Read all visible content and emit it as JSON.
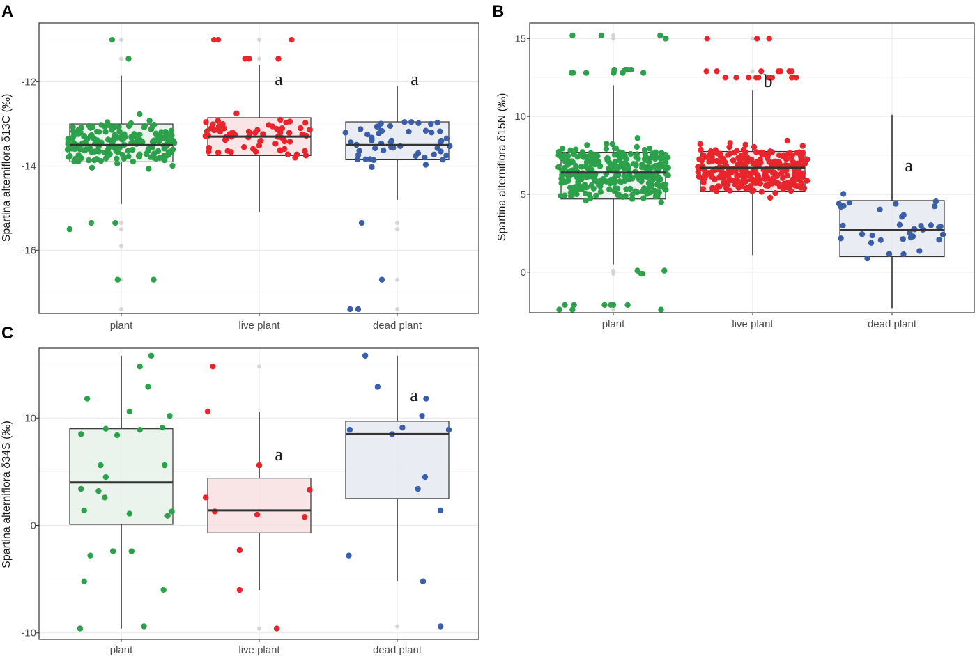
{
  "colors": {
    "plant": "#2ca04a",
    "live_plant": "#e8252c",
    "dead_plant": "#3a5fa8",
    "plant_fill": "#e3efe5",
    "live_fill": "#f7dcdd",
    "dead_fill": "#e2e7ef"
  },
  "chart_data": [
    {
      "panel": "A",
      "type": "box",
      "ylabel": "Spartina alterniflora δ13C (‰)",
      "categories": [
        "plant",
        "live plant",
        "dead plant"
      ],
      "yticks": [
        -12,
        -14,
        -16
      ],
      "ytick_labels": [
        "-12",
        "-14",
        "-16"
      ],
      "ylim": [
        -17.5,
        -10.6
      ],
      "series": [
        {
          "name": "plant",
          "q1": -13.9,
          "median": -13.5,
          "q3": -13.0,
          "whisker_low": -14.9,
          "whisker_high": -11.85,
          "outliers": [
            -11.0,
            -11.45,
            -15.35,
            -15.5,
            -15.9,
            -16.7,
            -17.4
          ],
          "sig": ""
        },
        {
          "name": "live plant",
          "q1": -13.75,
          "median": -13.3,
          "q3": -12.85,
          "whisker_low": -15.1,
          "whisker_high": -11.6,
          "outliers": [
            -11.0,
            -11.45
          ],
          "sig": "a"
        },
        {
          "name": "dead plant",
          "q1": -13.85,
          "median": -13.5,
          "q3": -12.95,
          "whisker_low": -14.8,
          "whisker_high": -12.1,
          "outliers": [
            -15.35,
            -15.5,
            -16.7,
            -17.4
          ],
          "sig": "a"
        }
      ],
      "jitter_counts": [
        190,
        75,
        55
      ]
    },
    {
      "panel": "B",
      "type": "box",
      "ylabel": "Spartina alterniflora δ15N (‰)",
      "categories": [
        "plant",
        "live plant",
        "dead plant"
      ],
      "yticks": [
        15,
        10,
        5,
        0
      ],
      "ytick_labels": [
        "15",
        "10",
        "5",
        "0"
      ],
      "ylim": [
        -2.6,
        16.0
      ],
      "series": [
        {
          "name": "plant",
          "q1": 4.7,
          "median": 6.4,
          "q3": 7.7,
          "whisker_low": 0.5,
          "whisker_high": 12.0,
          "outliers": [
            12.8,
            13.0,
            15.0,
            15.2,
            0.1,
            -0.1,
            -2.1,
            -2.4
          ],
          "sig": ""
        },
        {
          "name": "live plant",
          "q1": 5.2,
          "median": 6.7,
          "q3": 7.75,
          "whisker_low": 1.1,
          "whisker_high": 11.7,
          "outliers": [
            12.5,
            12.9,
            15.0
          ],
          "sig": "b"
        },
        {
          "name": "dead plant",
          "q1": 1.0,
          "median": 2.7,
          "q3": 4.6,
          "whisker_low": -2.3,
          "whisker_high": 10.1,
          "outliers": [],
          "sig": "a"
        }
      ],
      "jitter_counts": [
        330,
        300,
        35
      ]
    },
    {
      "panel": "C",
      "type": "box",
      "ylabel": "Spartina alterniflora δ34S (‰)",
      "categories": [
        "plant",
        "live plant",
        "dead plant"
      ],
      "yticks": [
        10,
        0,
        -10
      ],
      "ytick_labels": [
        "10",
        "0",
        "-10"
      ],
      "ylim": [
        -10.6,
        16.5
      ],
      "series": [
        {
          "name": "plant",
          "q1": 0.1,
          "median": 4.0,
          "q3": 9.0,
          "whisker_low": -9.6,
          "whisker_high": 15.8,
          "outliers": [],
          "sig": ""
        },
        {
          "name": "live plant",
          "q1": -0.7,
          "median": 1.4,
          "q3": 4.4,
          "whisker_low": -6.0,
          "whisker_high": 10.6,
          "outliers": [
            14.8,
            -9.6
          ],
          "sig": "a"
        },
        {
          "name": "dead plant",
          "q1": 2.5,
          "median": 8.5,
          "q3": 9.7,
          "whisker_low": -5.2,
          "whisker_high": 15.8,
          "outliers": [
            -9.4
          ],
          "sig": "a"
        }
      ],
      "points": [
        [
          [
            -9.6,
            -0.4
          ],
          [
            -9.4,
            0.22
          ],
          [
            -6.0,
            0.41
          ],
          [
            -5.2,
            -0.36
          ],
          [
            -2.8,
            -0.3
          ],
          [
            -2.4,
            -0.08
          ],
          [
            -2.4,
            0.1
          ],
          [
            0.9,
            0.45
          ],
          [
            1.1,
            0.08
          ],
          [
            1.3,
            0.49
          ],
          [
            1.4,
            -0.36
          ],
          [
            2.6,
            -0.16
          ],
          [
            3.2,
            -0.22
          ],
          [
            3.4,
            -0.39
          ],
          [
            4.5,
            -0.15
          ],
          [
            5.6,
            -0.2
          ],
          [
            5.6,
            0.42
          ],
          [
            8.4,
            -0.04
          ],
          [
            8.5,
            -0.39
          ],
          [
            8.9,
            0.18
          ],
          [
            9.0,
            -0.15
          ],
          [
            9.1,
            0.4
          ],
          [
            10.2,
            0.47
          ],
          [
            10.6,
            0.08
          ],
          [
            11.8,
            -0.33
          ],
          [
            12.9,
            0.26
          ],
          [
            14.8,
            0.18
          ],
          [
            15.8,
            0.29
          ]
        ],
        [
          [
            -9.6,
            0.17
          ],
          [
            -6.0,
            -0.19
          ],
          [
            -2.3,
            -0.19
          ],
          [
            0.8,
            0.44
          ],
          [
            1.0,
            -0.02
          ],
          [
            1.3,
            -0.43
          ],
          [
            2.6,
            -0.52
          ],
          [
            3.3,
            0.49
          ],
          [
            5.6,
            0.0
          ],
          [
            10.6,
            -0.5
          ],
          [
            14.8,
            -0.45
          ]
        ],
        [
          [
            -9.4,
            0.42
          ],
          [
            -5.2,
            0.25
          ],
          [
            -2.8,
            -0.47
          ],
          [
            1.4,
            0.42
          ],
          [
            3.4,
            0.2
          ],
          [
            4.5,
            0.27
          ],
          [
            8.5,
            -0.05
          ],
          [
            8.9,
            -0.46
          ],
          [
            8.9,
            0.5
          ],
          [
            9.1,
            0.05
          ],
          [
            10.2,
            0.24
          ],
          [
            11.8,
            0.28
          ],
          [
            12.9,
            -0.19
          ],
          [
            15.8,
            -0.31
          ]
        ]
      ]
    }
  ]
}
